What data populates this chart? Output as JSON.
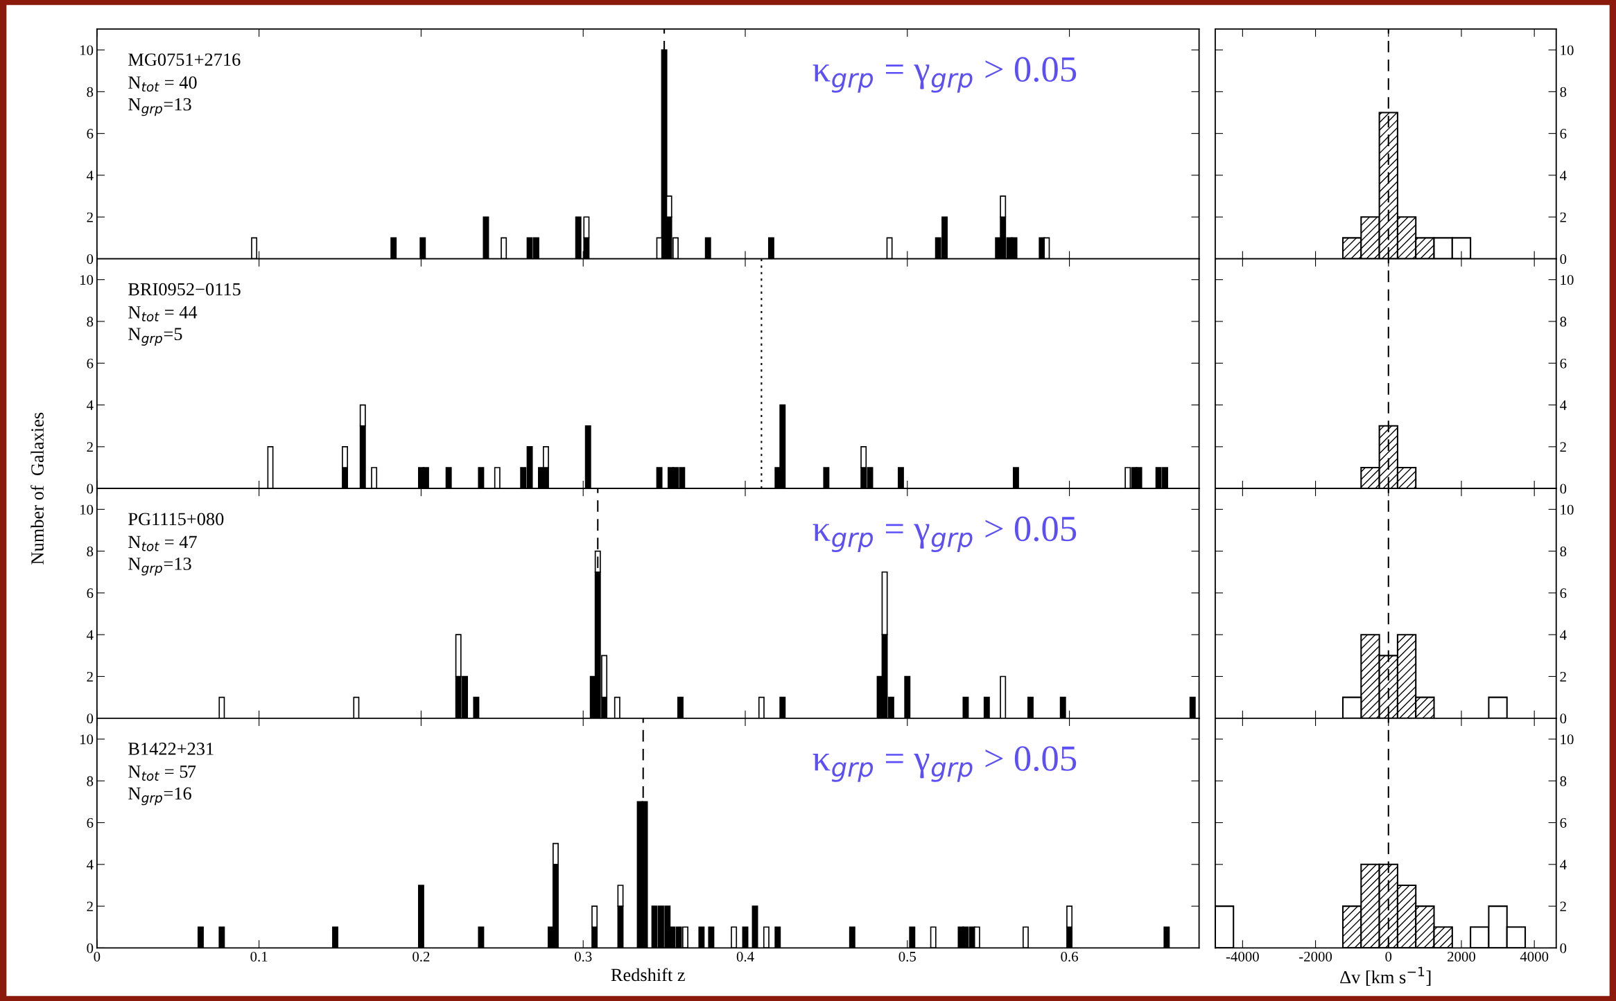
{
  "chart_data": [
    {
      "type": "bar",
      "stacked": true,
      "title": "MG0751+2716",
      "subtitle": "κ$_{grp}$ = γ$_{grp}$ > 0.05",
      "annotations": [
        "N$_{tot}$ = 40",
        "N$_{grp}$=13"
      ],
      "x": [
        0.097,
        0.183,
        0.201,
        0.24,
        0.251,
        0.267,
        0.271,
        0.297,
        0.302,
        0.347,
        0.35,
        0.353,
        0.357,
        0.377,
        0.416,
        0.489,
        0.519,
        0.523,
        0.556,
        0.559,
        0.563,
        0.566,
        0.583,
        0.586
      ],
      "series": [
        {
          "color": "#000000",
          "values": [
            null,
            1,
            1,
            2,
            null,
            1,
            1,
            2,
            1,
            null,
            10,
            2,
            null,
            1,
            1,
            null,
            1,
            2,
            1,
            2,
            1,
            1,
            1,
            null
          ]
        },
        {
          "color": "#ffffff",
          "values": [
            1,
            null,
            null,
            null,
            1,
            null,
            null,
            null,
            1,
            1,
            null,
            1,
            1,
            null,
            null,
            1,
            null,
            null,
            null,
            1,
            null,
            null,
            null,
            1
          ]
        }
      ],
      "xlim": [
        0,
        0.68
      ],
      "xticks": [
        0,
        0.1,
        0.2,
        0.3,
        0.4,
        0.5,
        0.6
      ],
      "ylim": [
        0,
        11
      ],
      "yticks": [
        0,
        2,
        4,
        6,
        8,
        10
      ],
      "tick_labels": "y",
      "ref_lines": [
        {
          "axis": "x",
          "value": 0.35,
          "line_style": "dashed",
          "color": "#000000"
        }
      ]
    },
    {
      "type": "histogram",
      "bins": [
        -4750,
        -4250,
        -3750,
        -3250,
        -2750,
        -2250,
        -1750,
        -1250,
        -750,
        -250,
        250,
        750,
        1250,
        1750,
        2250,
        2750,
        3250,
        3750
      ],
      "series": [
        {
          "color": "#000000",
          "values": [
            null,
            null,
            null,
            null,
            null,
            null,
            null,
            1,
            2,
            7,
            2,
            1,
            null,
            null,
            null,
            null,
            null
          ]
        },
        {
          "color": "#000000",
          "values": [
            null,
            null,
            null,
            null,
            null,
            null,
            null,
            null,
            null,
            null,
            null,
            null,
            1,
            1,
            null,
            null,
            null
          ]
        }
      ],
      "xlim": [
        -4750,
        4600
      ],
      "xticks": [
        -4000,
        -2000,
        0,
        2000,
        4000
      ],
      "ylim": [
        0,
        11
      ],
      "yticks": [
        0,
        2,
        4,
        6,
        8,
        10
      ],
      "tick_labels": "y",
      "ref_lines": [
        {
          "axis": "x",
          "value": 0,
          "line_style": "dashed",
          "color": "#000000"
        }
      ]
    },
    {
      "type": "bar",
      "stacked": true,
      "title": "BRI0952−0115",
      "annotations": [
        "N$_{tot}$ = 44",
        "N$_{grp}$=5"
      ],
      "ylabel": "Number of  Galaxies",
      "x": [
        0.107,
        0.153,
        0.164,
        0.171,
        0.2,
        0.203,
        0.217,
        0.237,
        0.247,
        0.263,
        0.267,
        0.274,
        0.277,
        0.303,
        0.347,
        0.354,
        0.357,
        0.361,
        0.42,
        0.423,
        0.45,
        0.473,
        0.477,
        0.496,
        0.567,
        0.636,
        0.64,
        0.643,
        0.655,
        0.659
      ],
      "series": [
        {
          "color": "#000000",
          "values": [
            null,
            1,
            3,
            null,
            1,
            1,
            1,
            1,
            null,
            1,
            2,
            1,
            1,
            3,
            1,
            1,
            1,
            1,
            1,
            4,
            1,
            1,
            1,
            1,
            1,
            null,
            1,
            1,
            1,
            1
          ]
        },
        {
          "color": "#ffffff",
          "values": [
            2,
            1,
            1,
            1,
            null,
            null,
            null,
            null,
            1,
            null,
            null,
            null,
            1,
            null,
            null,
            null,
            null,
            null,
            null,
            null,
            null,
            1,
            null,
            null,
            null,
            1,
            null,
            null,
            null,
            null
          ]
        }
      ],
      "xlim": [
        0,
        0.68
      ],
      "xticks": [
        0,
        0.1,
        0.2,
        0.3,
        0.4,
        0.5,
        0.6
      ],
      "ylim": [
        0,
        11
      ],
      "yticks": [
        0,
        2,
        4,
        6,
        8,
        10
      ],
      "tick_labels": "y",
      "ref_lines": [
        {
          "axis": "x",
          "value": 0.41,
          "line_style": "dotted",
          "color": "#000000"
        }
      ]
    },
    {
      "type": "histogram",
      "bins": [
        -4750,
        -4250,
        -3750,
        -3250,
        -2750,
        -2250,
        -1750,
        -1250,
        -750,
        -250,
        250,
        750,
        1250,
        1750,
        2250,
        2750,
        3250,
        3750
      ],
      "series": [
        {
          "color": "#000000",
          "values": [
            null,
            null,
            null,
            null,
            null,
            null,
            null,
            null,
            1,
            3,
            1,
            null,
            null,
            null,
            null,
            null,
            null
          ]
        }
      ],
      "xlim": [
        -4750,
        4600
      ],
      "xticks": [
        -4000,
        -2000,
        0,
        2000,
        4000
      ],
      "ylim": [
        0,
        11
      ],
      "yticks": [
        0,
        2,
        4,
        6,
        8,
        10
      ],
      "tick_labels": "y",
      "ref_lines": [
        {
          "axis": "x",
          "value": 0,
          "line_style": "dashed",
          "color": "#000000"
        }
      ]
    },
    {
      "type": "bar",
      "stacked": true,
      "title": "PG1115+080",
      "subtitle": "κ$_{grp}$ = γ$_{grp}$ > 0.05",
      "annotations": [
        "N$_{tot}$ = 47",
        "N$_{grp}$=13"
      ],
      "x": [
        0.077,
        0.16,
        0.223,
        0.227,
        0.234,
        0.306,
        0.309,
        0.313,
        0.321,
        0.36,
        0.41,
        0.423,
        0.483,
        0.486,
        0.49,
        0.5,
        0.536,
        0.549,
        0.559,
        0.576,
        0.596,
        0.676
      ],
      "series": [
        {
          "color": "#000000",
          "values": [
            null,
            null,
            2,
            2,
            1,
            2,
            7,
            1,
            null,
            1,
            null,
            1,
            2,
            4,
            1,
            2,
            1,
            1,
            null,
            1,
            1,
            1
          ]
        },
        {
          "color": "#ffffff",
          "values": [
            1,
            1,
            2,
            null,
            null,
            null,
            1,
            2,
            1,
            null,
            1,
            null,
            null,
            3,
            null,
            null,
            null,
            null,
            2,
            null,
            null,
            null
          ]
        }
      ],
      "xlim": [
        0,
        0.68
      ],
      "xticks": [
        0,
        0.1,
        0.2,
        0.3,
        0.4,
        0.5,
        0.6
      ],
      "ylim": [
        0,
        11
      ],
      "yticks": [
        0,
        2,
        4,
        6,
        8,
        10
      ],
      "tick_labels": "y",
      "ref_lines": [
        {
          "axis": "x",
          "value": 0.309,
          "line_style": "dashed",
          "color": "#000000"
        }
      ]
    },
    {
      "type": "histogram",
      "bins": [
        -4750,
        -4250,
        -3750,
        -3250,
        -2750,
        -2250,
        -1750,
        -1250,
        -750,
        -250,
        250,
        750,
        1250,
        1750,
        2250,
        2750,
        3250,
        3750
      ],
      "series": [
        {
          "color": "#000000",
          "values": [
            null,
            null,
            null,
            null,
            null,
            null,
            null,
            null,
            4,
            3,
            4,
            1,
            null,
            null,
            null,
            null,
            null
          ]
        },
        {
          "color": "#000000",
          "values": [
            null,
            null,
            null,
            null,
            null,
            null,
            null,
            1,
            null,
            null,
            null,
            null,
            null,
            null,
            null,
            1,
            null
          ]
        }
      ],
      "xlim": [
        -4750,
        4600
      ],
      "xticks": [
        -4000,
        -2000,
        0,
        2000,
        4000
      ],
      "ylim": [
        0,
        11
      ],
      "yticks": [
        0,
        2,
        4,
        6,
        8,
        10
      ],
      "tick_labels": "y",
      "ref_lines": [
        {
          "axis": "x",
          "value": 0,
          "line_style": "dashed",
          "color": "#000000"
        }
      ]
    },
    {
      "type": "bar",
      "stacked": true,
      "title": "B1422+231",
      "subtitle": "κ$_{grp}$ = γ$_{grp}$ > 0.05",
      "annotations": [
        "N$_{tot}$ = 57",
        "N$_{grp}$=16"
      ],
      "xlabel": "Redshift z",
      "x": [
        0.064,
        0.077,
        0.147,
        0.2,
        0.237,
        0.28,
        0.283,
        0.307,
        0.323,
        0.335,
        0.338,
        0.344,
        0.348,
        0.352,
        0.355,
        0.359,
        0.363,
        0.373,
        0.379,
        0.393,
        0.4,
        0.406,
        0.413,
        0.42,
        0.466,
        0.503,
        0.516,
        0.533,
        0.536,
        0.54,
        0.543,
        0.573,
        0.6,
        0.66
      ],
      "series": [
        {
          "color": "#000000",
          "values": [
            1,
            1,
            1,
            3,
            1,
            1,
            4,
            1,
            2,
            7,
            7,
            2,
            2,
            2,
            1,
            1,
            null,
            1,
            1,
            null,
            1,
            2,
            null,
            1,
            1,
            1,
            null,
            1,
            1,
            1,
            null,
            null,
            1,
            1
          ]
        },
        {
          "color": "#ffffff",
          "values": [
            null,
            null,
            null,
            null,
            null,
            null,
            1,
            1,
            1,
            null,
            null,
            null,
            null,
            null,
            null,
            null,
            1,
            null,
            null,
            1,
            null,
            null,
            1,
            null,
            null,
            null,
            1,
            null,
            null,
            null,
            1,
            1,
            1,
            null
          ]
        }
      ],
      "xlim": [
        0,
        0.68
      ],
      "xticks": [
        0,
        0.1,
        0.2,
        0.3,
        0.4,
        0.5,
        0.6
      ],
      "ylim": [
        0,
        11
      ],
      "yticks": [
        0,
        2,
        4,
        6,
        8,
        10
      ],
      "ref_lines": [
        {
          "axis": "x",
          "value": 0.337,
          "line_style": "dashed",
          "color": "#000000"
        }
      ]
    },
    {
      "type": "histogram",
      "xlabel": "Δv [km s$^{−1}$]",
      "bins": [
        -4750,
        -4250,
        -3750,
        -3250,
        -2750,
        -2250,
        -1750,
        -1250,
        -750,
        -250,
        250,
        750,
        1250,
        1750,
        2250,
        2750,
        3250,
        3750
      ],
      "series": [
        {
          "color": "#000000",
          "values": [
            null,
            null,
            null,
            null,
            null,
            null,
            null,
            2,
            4,
            4,
            3,
            2,
            1,
            null,
            null,
            null,
            null
          ]
        },
        {
          "color": "#000000",
          "values": [
            2,
            null,
            null,
            null,
            null,
            null,
            null,
            null,
            null,
            null,
            null,
            null,
            null,
            null,
            1,
            2,
            1
          ]
        }
      ],
      "xlim": [
        -4750,
        4600
      ],
      "xticks": [
        -4000,
        -2000,
        0,
        2000,
        4000
      ],
      "ylim": [
        0,
        11
      ],
      "yticks": [
        0,
        2,
        4,
        6,
        8,
        10
      ],
      "ref_lines": [
        {
          "axis": "x",
          "value": 0,
          "line_style": "dashed",
          "color": "#000000"
        }
      ]
    }
  ]
}
